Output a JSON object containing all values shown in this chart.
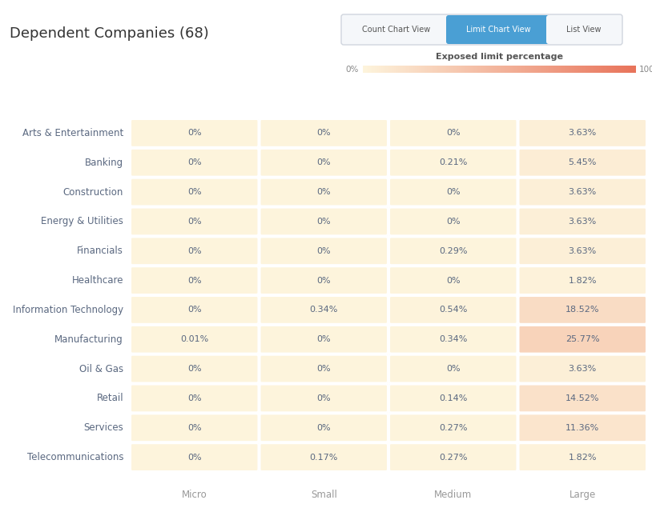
{
  "title": "Dependent Companies (68)",
  "rows": [
    "Arts & Entertainment",
    "Banking",
    "Construction",
    "Energy & Utilities",
    "Financials",
    "Healthcare",
    "Information Technology",
    "Manufacturing",
    "Oil & Gas",
    "Retail",
    "Services",
    "Telecommunications"
  ],
  "columns": [
    "Micro",
    "Small",
    "Medium",
    "Large"
  ],
  "values": [
    [
      0.0,
      0.0,
      0.0,
      3.63
    ],
    [
      0.0,
      0.0,
      0.21,
      5.45
    ],
    [
      0.0,
      0.0,
      0.0,
      3.63
    ],
    [
      0.0,
      0.0,
      0.0,
      3.63
    ],
    [
      0.0,
      0.0,
      0.29,
      3.63
    ],
    [
      0.0,
      0.0,
      0.0,
      1.82
    ],
    [
      0.0,
      0.34,
      0.54,
      18.52
    ],
    [
      0.01,
      0.0,
      0.34,
      25.77
    ],
    [
      0.0,
      0.0,
      0.0,
      3.63
    ],
    [
      0.0,
      0.0,
      0.14,
      14.52
    ],
    [
      0.0,
      0.0,
      0.27,
      11.36
    ],
    [
      0.0,
      0.17,
      0.27,
      1.82
    ]
  ],
  "labels": [
    [
      "0%",
      "0%",
      "0%",
      "3.63%"
    ],
    [
      "0%",
      "0%",
      "0.21%",
      "5.45%"
    ],
    [
      "0%",
      "0%",
      "0%",
      "3.63%"
    ],
    [
      "0%",
      "0%",
      "0%",
      "3.63%"
    ],
    [
      "0%",
      "0%",
      "0.29%",
      "3.63%"
    ],
    [
      "0%",
      "0%",
      "0%",
      "1.82%"
    ],
    [
      "0%",
      "0.34%",
      "0.54%",
      "18.52%"
    ],
    [
      "0.01%",
      "0%",
      "0.34%",
      "25.77%"
    ],
    [
      "0%",
      "0%",
      "0%",
      "3.63%"
    ],
    [
      "0%",
      "0%",
      "0.14%",
      "14.52%"
    ],
    [
      "0%",
      "0%",
      "0.27%",
      "11.36%"
    ],
    [
      "0%",
      "0.17%",
      "0.27%",
      "1.82%"
    ]
  ],
  "bg_color": "#ffffff",
  "cell_base_color": "#fdf4dc",
  "cell_hot_color": "#e8735a",
  "text_color": "#5a6880",
  "button_bg": "#4a9fd4",
  "button_text": "#ffffff",
  "colorbar_label": "Exposed limit percentage",
  "color_vmax": 100.0,
  "row_label_color": "#5a6880",
  "col_label_color": "#999999",
  "title_color": "#333333",
  "grid_color": "#ffffff",
  "btn_labels": [
    "Count Chart View",
    "Limit Chart View",
    "List View"
  ],
  "btn_active": 1
}
